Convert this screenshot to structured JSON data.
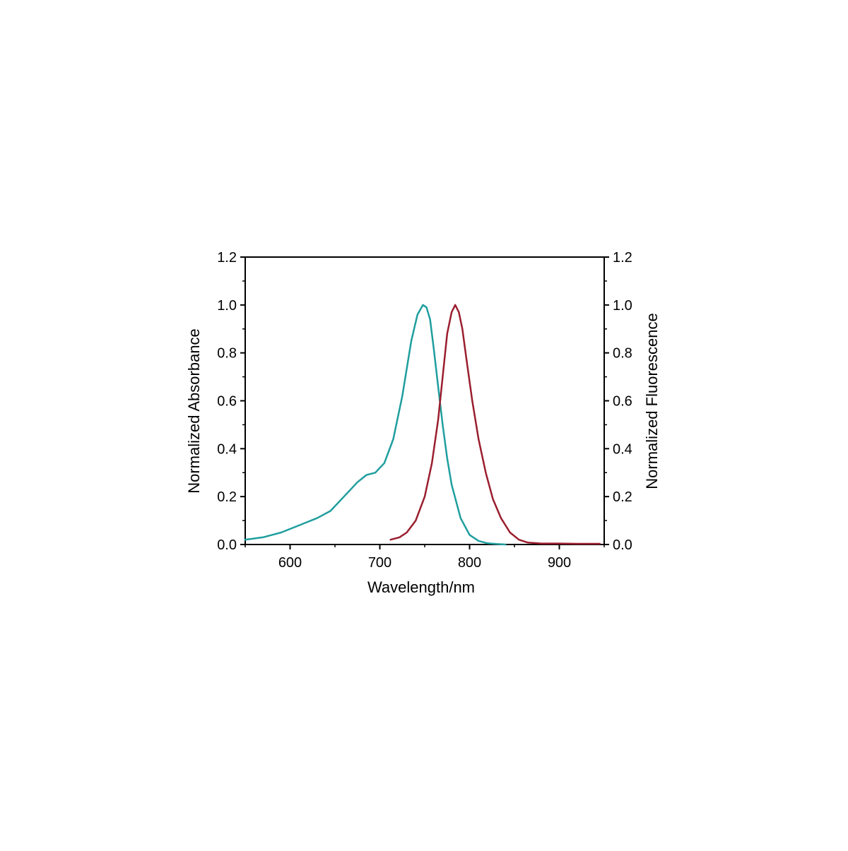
{
  "colors": {
    "absorbance": "#1f9e9e",
    "fluorescence": "#9a1e2e",
    "axis": "#000000",
    "background": "#ffffff"
  },
  "chart_data": {
    "type": "line",
    "xlabel": "Wavelength/nm",
    "ylabel_left": "Normalized Absorbance",
    "ylabel_right": "Normalized Fluorescence",
    "xlim": [
      550,
      950
    ],
    "ylim": [
      0.0,
      1.2
    ],
    "x_ticks": [
      600,
      700,
      800,
      900
    ],
    "x_tick_labels": [
      "600",
      "700",
      "800",
      "900"
    ],
    "y_ticks": [
      0.0,
      0.2,
      0.4,
      0.6,
      0.8,
      1.0,
      1.2
    ],
    "y_tick_labels": [
      "0.0",
      "0.2",
      "0.4",
      "0.6",
      "0.8",
      "1.0",
      "1.2"
    ],
    "grid": false,
    "legend": "none",
    "series": [
      {
        "axis": "left",
        "color_key": "absorbance",
        "x": [
          550,
          570,
          590,
          610,
          630,
          645,
          660,
          675,
          685,
          695,
          705,
          715,
          725,
          735,
          742,
          748,
          752,
          756,
          760,
          765,
          770,
          775,
          780,
          790,
          800,
          810,
          820,
          830,
          840
        ],
        "y": [
          0.02,
          0.03,
          0.05,
          0.08,
          0.11,
          0.14,
          0.2,
          0.26,
          0.29,
          0.3,
          0.34,
          0.44,
          0.62,
          0.85,
          0.96,
          1.0,
          0.99,
          0.94,
          0.82,
          0.66,
          0.5,
          0.36,
          0.25,
          0.11,
          0.04,
          0.015,
          0.005,
          0.002,
          0.0
        ]
      },
      {
        "axis": "right",
        "color_key": "fluorescence",
        "x": [
          712,
          722,
          730,
          740,
          750,
          758,
          765,
          770,
          775,
          780,
          784,
          788,
          792,
          797,
          803,
          810,
          818,
          826,
          835,
          845,
          855,
          865,
          880,
          900,
          920,
          945
        ],
        "y": [
          0.02,
          0.03,
          0.05,
          0.1,
          0.2,
          0.34,
          0.52,
          0.7,
          0.88,
          0.97,
          1.0,
          0.97,
          0.9,
          0.76,
          0.6,
          0.44,
          0.3,
          0.19,
          0.11,
          0.05,
          0.02,
          0.008,
          0.004,
          0.004,
          0.003,
          0.003
        ]
      }
    ]
  }
}
